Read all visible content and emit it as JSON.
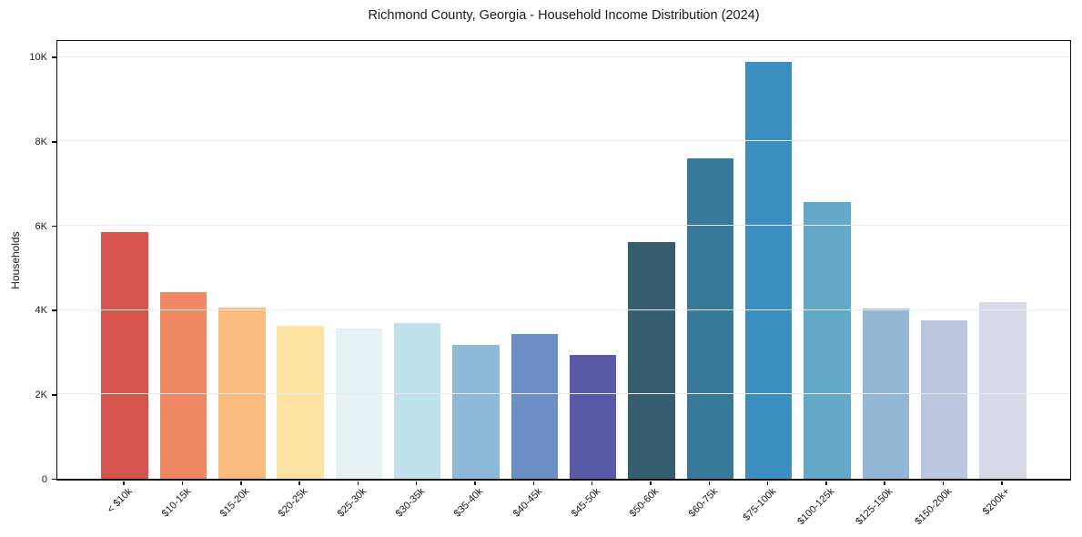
{
  "chart_data": {
    "type": "bar",
    "title": "Richmond County, Georgia - Household Income Distribution (2024)",
    "xlabel": "",
    "ylabel": "Households",
    "categories": [
      "< $10k",
      "$10-15k",
      "$15-20k",
      "$20-25k",
      "$25-30k",
      "$30-35k",
      "$35-40k",
      "$40-45k",
      "$45-50k",
      "$50-60k",
      "$60-75k",
      "$75-100k",
      "$100-125k",
      "$125-150k",
      "$150-200k",
      "$200k+"
    ],
    "values": [
      5840,
      4420,
      4060,
      3630,
      3560,
      3680,
      3170,
      3430,
      2930,
      5610,
      7590,
      9880,
      6570,
      4030,
      3760,
      4180
    ],
    "bar_colors": [
      "#d6544e",
      "#f08763",
      "#fabc7e",
      "#fce3a2",
      "#e7f1f3",
      "#c0e0ec",
      "#8fb9d9",
      "#6c8ec5",
      "#5859a8",
      "#365d6e",
      "#38789b",
      "#3a8ec1",
      "#62a8c9",
      "#94b7d6",
      "#bac7de",
      "#d7d9e6"
    ],
    "y_axis": {
      "ticks": [
        {
          "value": 0,
          "label": "0"
        },
        {
          "value": 2000,
          "label": "2K"
        },
        {
          "value": 4000,
          "label": "4K"
        },
        {
          "value": 6000,
          "label": "6K"
        },
        {
          "value": 8000,
          "label": "8K"
        },
        {
          "value": 10000,
          "label": "10K"
        }
      ],
      "max": 10380
    },
    "x_axis": {
      "tick_rotation_deg": 45
    },
    "ylim": [
      0,
      10380
    ],
    "grid": "horizontal",
    "grid_on_top": true,
    "legend": "none",
    "colors": {
      "background": "#ffffff",
      "grid": "#e9e9e9",
      "axis": "#0f0f0f",
      "text": "#1a1a1a"
    }
  }
}
